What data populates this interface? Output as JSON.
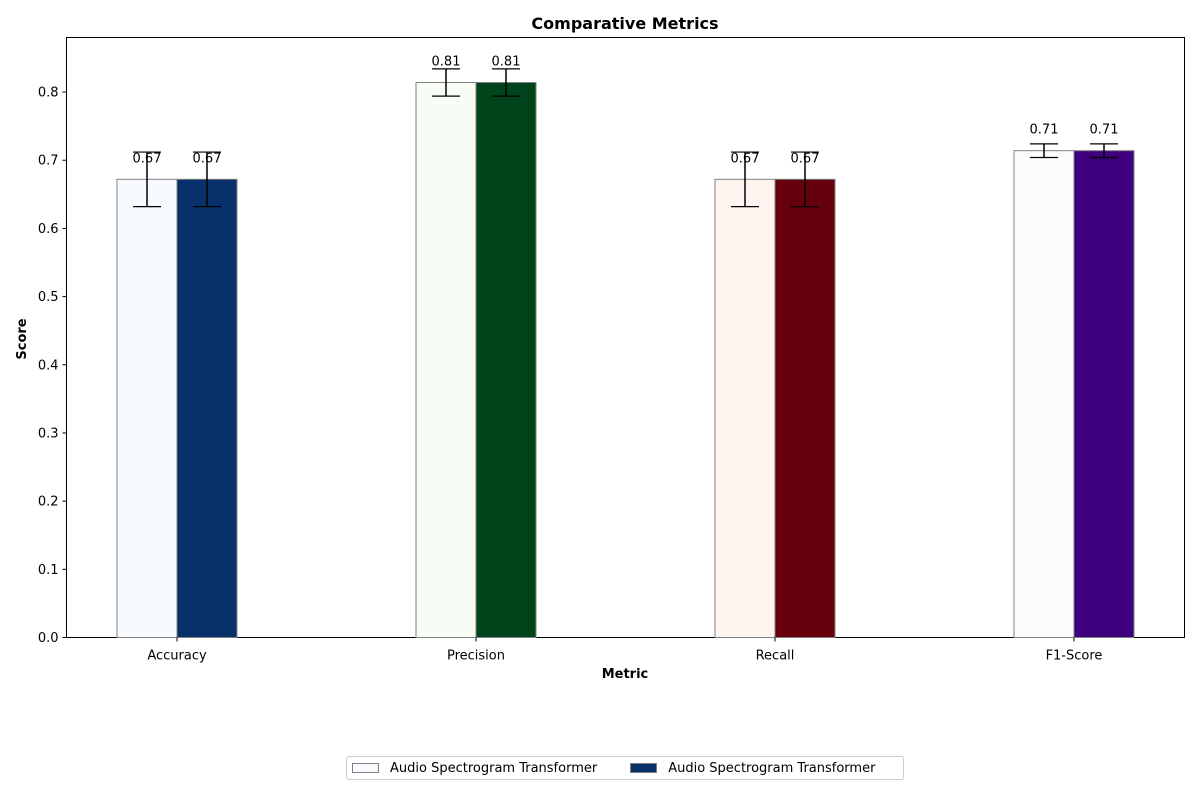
{
  "chart_data": {
    "type": "bar",
    "title": "Comparative Metrics",
    "xlabel": "Metric",
    "ylabel": "Score",
    "categories": [
      "Accuracy",
      "Precision",
      "Recall",
      "F1-Score"
    ],
    "ylim": [
      0,
      0.88
    ],
    "yticks": [
      "0.0",
      "0.1",
      "0.2",
      "0.3",
      "0.4",
      "0.5",
      "0.6",
      "0.7",
      "0.8"
    ],
    "grid": false,
    "legend_position": "bottom-center",
    "series": [
      {
        "name": "Audio Spectrogram Transformer",
        "values": [
          0.672,
          0.814,
          0.672,
          0.714
        ],
        "errors": [
          0.04,
          0.02,
          0.04,
          0.01
        ],
        "labels": [
          "0.67",
          "0.81",
          "0.67",
          "0.71"
        ],
        "colors": [
          "#f7fbff",
          "#f7fcf5",
          "#fff5f0",
          "#fcfbfd"
        ]
      },
      {
        "name": "Audio Spectrogram Transformer",
        "values": [
          0.672,
          0.814,
          0.672,
          0.714
        ],
        "errors": [
          0.04,
          0.02,
          0.04,
          0.01
        ],
        "labels": [
          "0.67",
          "0.81",
          "0.67",
          "0.71"
        ],
        "colors": [
          "#08306b",
          "#00441b",
          "#67000d",
          "#3f007d"
        ]
      }
    ]
  }
}
